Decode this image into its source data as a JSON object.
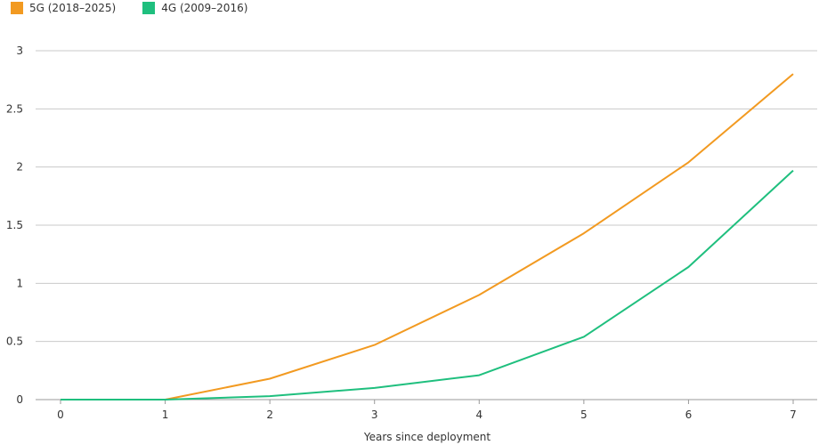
{
  "chart_data": {
    "type": "line",
    "title": "",
    "xlabel": "Years since deployment",
    "ylabel": "",
    "x": [
      0,
      1,
      2,
      3,
      4,
      5,
      6,
      7
    ],
    "xlim": [
      0,
      7
    ],
    "ylim": [
      0,
      3
    ],
    "x_ticks": [
      "0",
      "1",
      "2",
      "3",
      "4",
      "5",
      "6",
      "7"
    ],
    "y_ticks": [
      "0",
      "0.5",
      "1",
      "1.5",
      "2",
      "2.5",
      "3"
    ],
    "grid": "horizontal",
    "legend_position": "top-left",
    "series": [
      {
        "name": "5G (2018–2025)",
        "color": "#F29A21",
        "values": [
          0.0,
          0.0,
          0.18,
          0.47,
          0.9,
          1.43,
          2.04,
          2.8
        ]
      },
      {
        "name": "4G (2009–2016)",
        "color": "#1FBF7E",
        "values": [
          0.0,
          0.0,
          0.03,
          0.1,
          0.21,
          0.54,
          1.14,
          1.97
        ]
      }
    ]
  }
}
